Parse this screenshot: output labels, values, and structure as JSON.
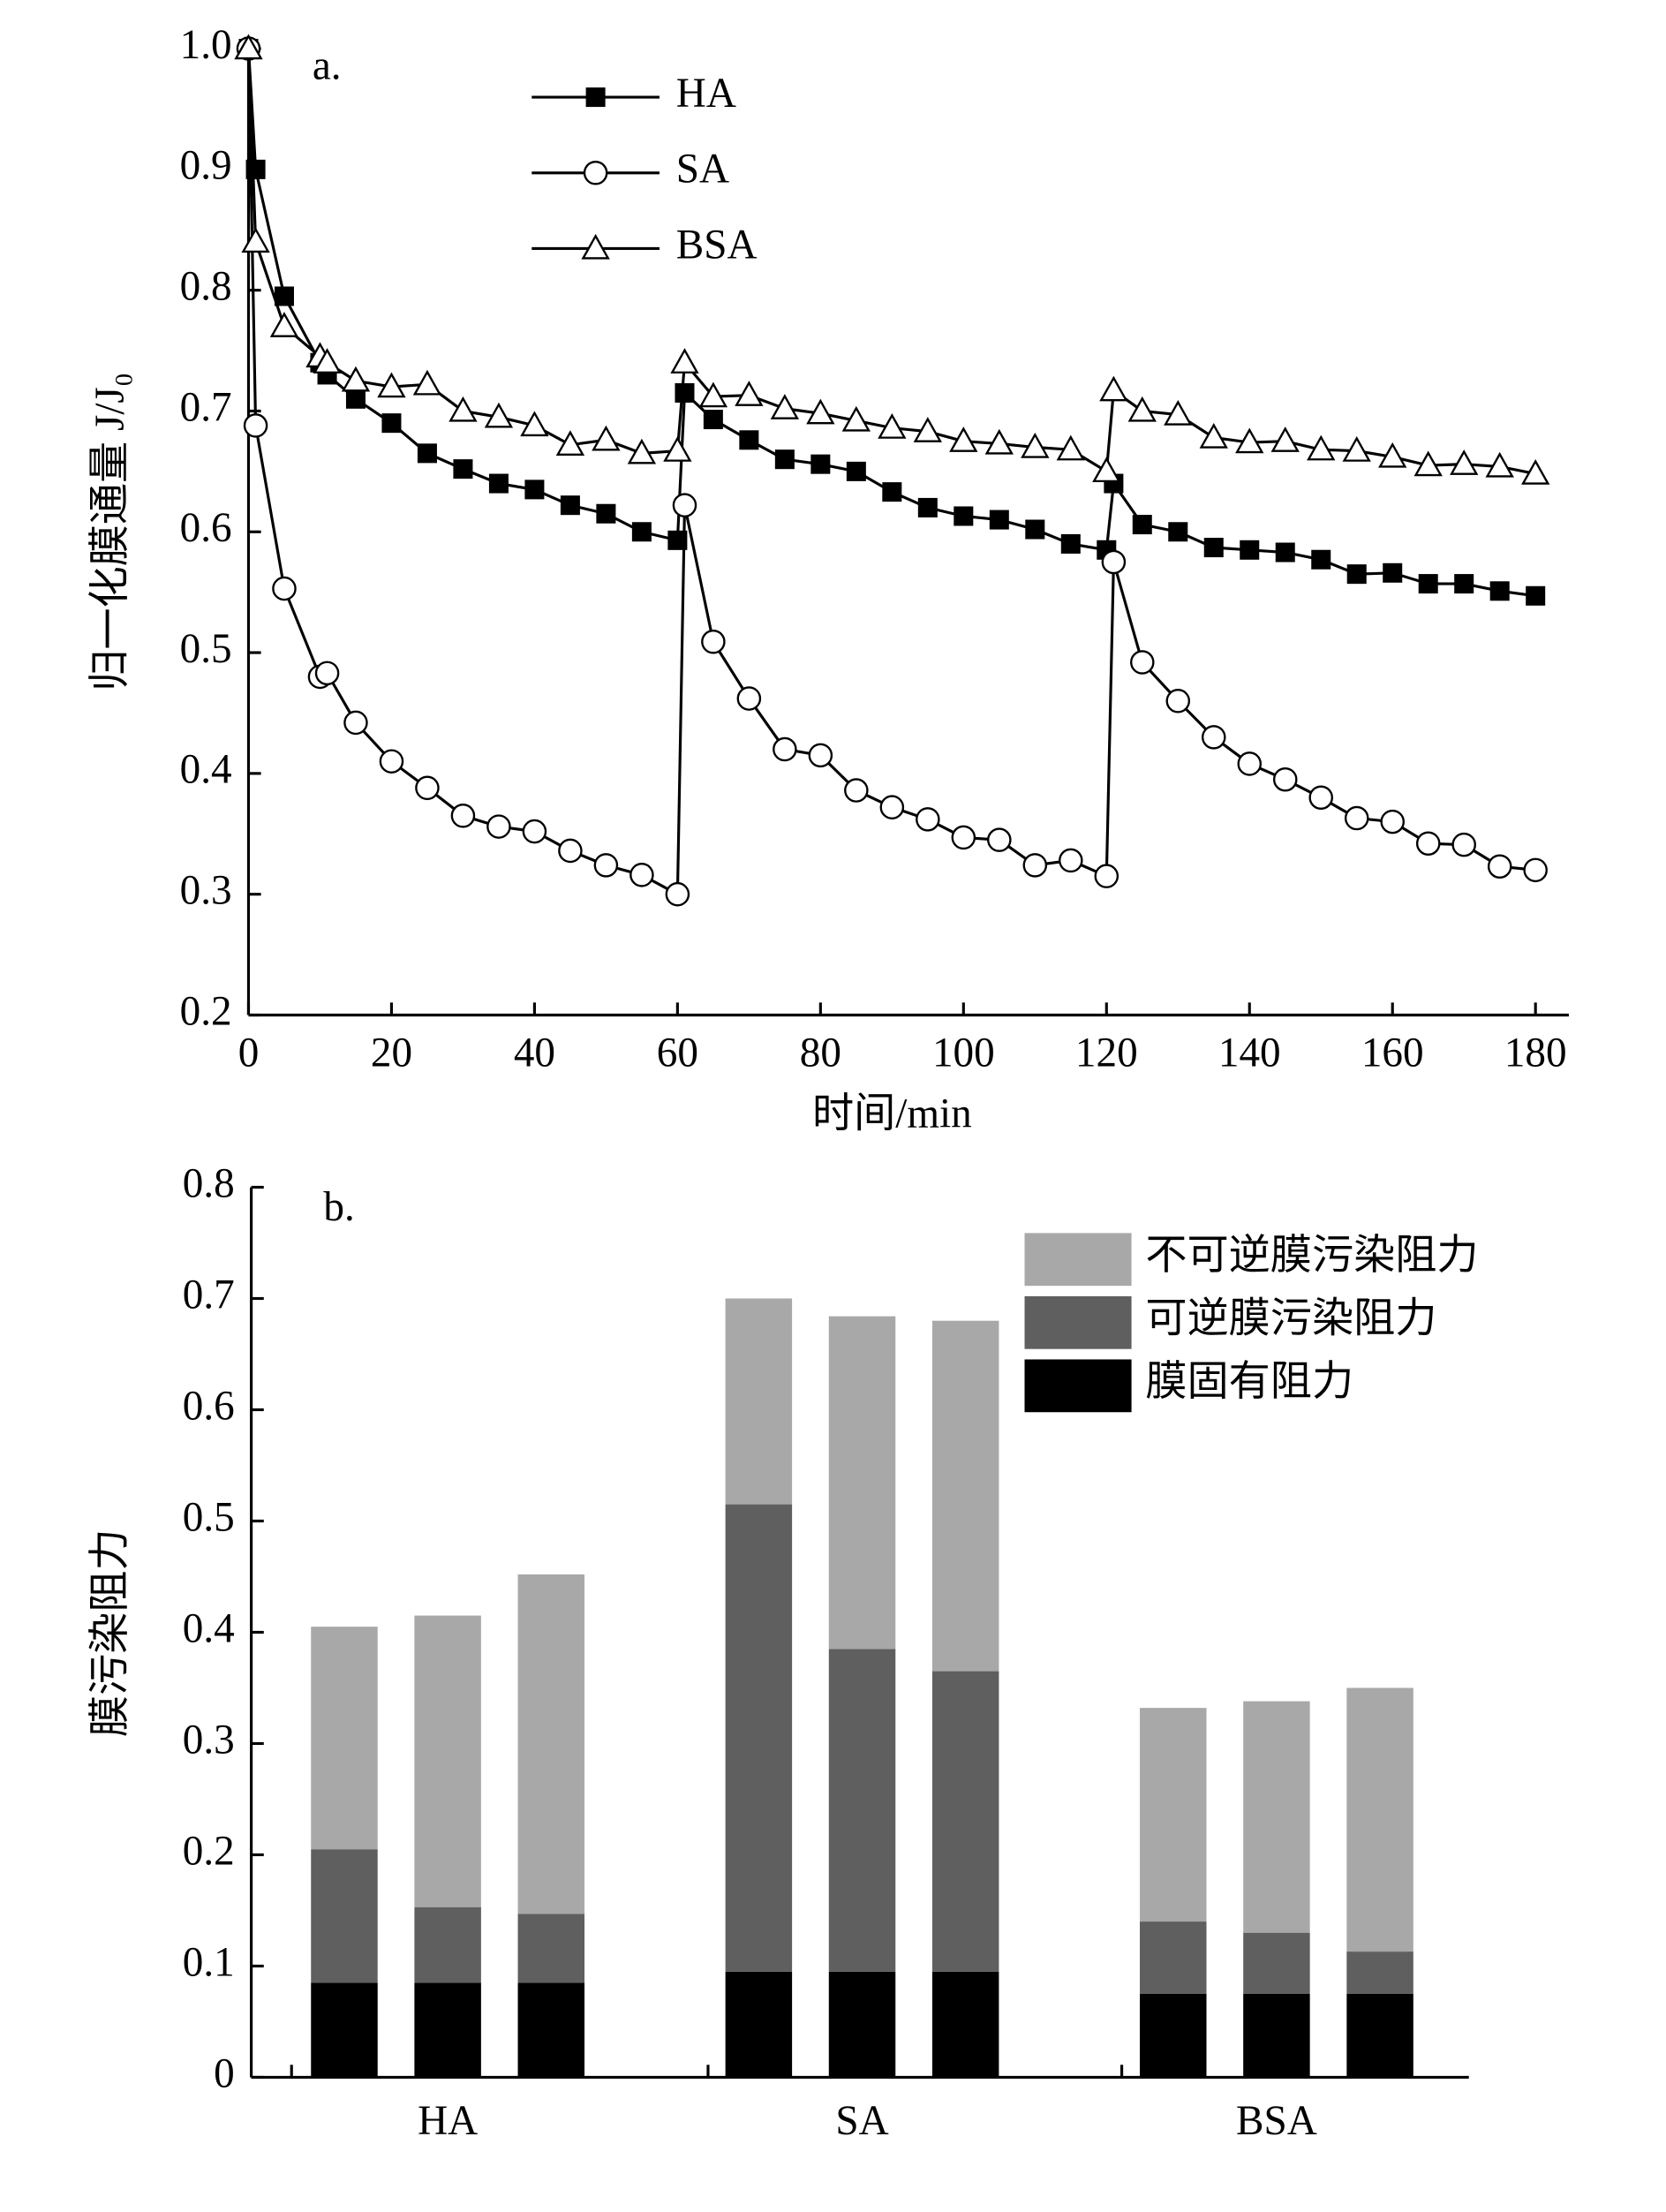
{
  "chart_data": [
    {
      "type": "line",
      "annotation": "a.",
      "x_label": "时间/min",
      "y_label": "归一化膜通量 J/J₀",
      "x": [
        0,
        1,
        5,
        10,
        11,
        15,
        20,
        25,
        30,
        35,
        40,
        45,
        50,
        55,
        60,
        61,
        65,
        70,
        75,
        80,
        85,
        90,
        95,
        100,
        105,
        110,
        115,
        120,
        121,
        125,
        130,
        135,
        140,
        145,
        150,
        155,
        160,
        165,
        170,
        175,
        180
      ],
      "series": [
        {
          "name": "HA",
          "color": "#000000",
          "marker": "square",
          "values": [
            1.0,
            0.9,
            0.795,
            0.74,
            0.73,
            0.71,
            0.69,
            0.665,
            0.652,
            0.64,
            0.635,
            0.622,
            0.615,
            0.6,
            0.593,
            0.715,
            0.693,
            0.676,
            0.66,
            0.656,
            0.65,
            0.633,
            0.62,
            0.613,
            0.61,
            0.602,
            0.59,
            0.585,
            0.64,
            0.606,
            0.6,
            0.587,
            0.585,
            0.583,
            0.577,
            0.565,
            0.566,
            0.557,
            0.557,
            0.551,
            0.547
          ]
        },
        {
          "name": "SA",
          "color": "#000000",
          "marker": "circle",
          "values": [
            1.0,
            0.688,
            0.553,
            0.48,
            0.483,
            0.442,
            0.41,
            0.388,
            0.365,
            0.356,
            0.352,
            0.336,
            0.324,
            0.316,
            0.3,
            0.622,
            0.509,
            0.462,
            0.42,
            0.415,
            0.386,
            0.372,
            0.362,
            0.347,
            0.345,
            0.324,
            0.328,
            0.315,
            0.575,
            0.492,
            0.46,
            0.43,
            0.408,
            0.395,
            0.38,
            0.363,
            0.36,
            0.342,
            0.341,
            0.323,
            0.32
          ]
        },
        {
          "name": "BSA",
          "color": "#000000",
          "marker": "triangle",
          "values": [
            1.0,
            0.84,
            0.77,
            0.745,
            0.74,
            0.725,
            0.72,
            0.722,
            0.7,
            0.695,
            0.688,
            0.672,
            0.676,
            0.665,
            0.667,
            0.74,
            0.712,
            0.713,
            0.702,
            0.698,
            0.692,
            0.686,
            0.683,
            0.675,
            0.673,
            0.67,
            0.668,
            0.65,
            0.717,
            0.7,
            0.697,
            0.678,
            0.674,
            0.675,
            0.668,
            0.667,
            0.662,
            0.655,
            0.656,
            0.654,
            0.648
          ]
        }
      ],
      "xlim": [
        0,
        180
      ],
      "xticks": [
        0,
        20,
        40,
        60,
        80,
        100,
        120,
        140,
        160,
        180
      ],
      "ylim": [
        0.2,
        1.0
      ],
      "yticks": [
        0.2,
        0.3,
        0.4,
        0.5,
        0.6,
        0.7,
        0.8,
        0.9,
        {
          "value": 1,
          "label": "1.0"
        }
      ],
      "legend": "upper center"
    },
    {
      "type": "stacked_bar",
      "annotation": "b.",
      "y_label": "膜污染阻力",
      "categories": [
        null,
        "HA",
        null,
        null,
        "SA",
        null,
        null,
        "BSA",
        null
      ],
      "series": [
        {
          "name": "膜固有阻力",
          "color": "#000000",
          "values": [
            0.085,
            0.085,
            0.085,
            0.095,
            0.095,
            0.095,
            0.075,
            0.075,
            0.075
          ]
        },
        {
          "name": "可逆膜污染阻力",
          "color": "#5f5f5f",
          "values": [
            0.12,
            0.068,
            0.062,
            0.42,
            0.29,
            0.27,
            0.065,
            0.055,
            0.038
          ]
        },
        {
          "name": "不可逆膜污染阻力",
          "color": "#a8a8a8",
          "values": [
            0.2,
            0.262,
            0.305,
            0.185,
            0.299,
            0.315,
            0.192,
            0.208,
            0.237
          ]
        }
      ],
      "ylim": [
        0,
        0.8
      ],
      "yticks": [
        0,
        0.1,
        0.2,
        0.3,
        0.4,
        0.5,
        0.6,
        0.7,
        0.8
      ],
      "legend": "upper right"
    }
  ]
}
